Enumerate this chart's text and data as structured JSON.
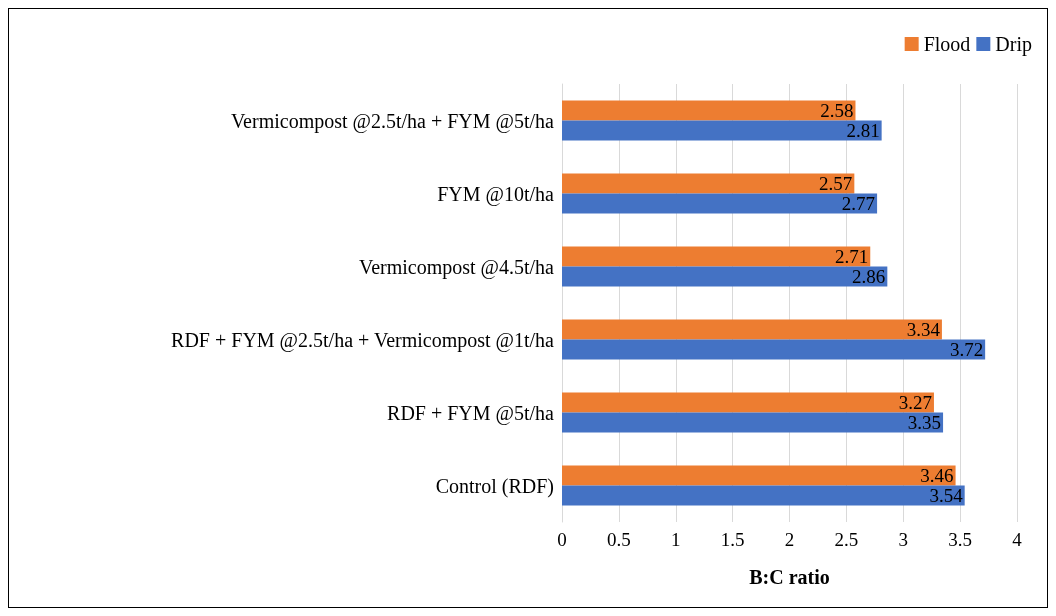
{
  "chart_data": {
    "type": "bar",
    "orientation": "horizontal",
    "xlabel": "B:C ratio",
    "categories": [
      "Vermicompost @2.5t/ha + FYM @5t/ha",
      "FYM @10t/ha",
      "Vermicompost @4.5t/ha",
      "RDF + FYM @2.5t/ha + Vermicompost @1t/ha",
      "RDF + FYM @5t/ha",
      "Control (RDF)"
    ],
    "series": [
      {
        "name": "Flood",
        "color": "#ed7d31",
        "values": [
          2.58,
          2.57,
          2.71,
          3.34,
          3.27,
          3.46
        ]
      },
      {
        "name": "Drip",
        "color": "#4472c4",
        "values": [
          2.81,
          2.77,
          2.86,
          3.72,
          3.35,
          3.54
        ]
      }
    ],
    "xlim": [
      0,
      4
    ],
    "xticks": [
      0,
      0.5,
      1,
      1.5,
      2,
      2.5,
      3,
      3.5,
      4
    ],
    "grid": "x",
    "legend": "top right",
    "data_labels": true
  }
}
